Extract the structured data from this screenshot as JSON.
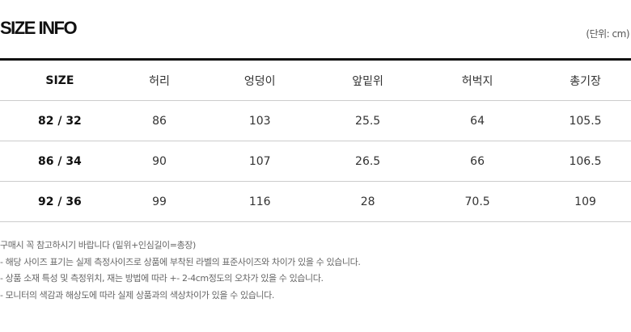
{
  "title": "SIZE INFO",
  "unit": "(단위: cm)",
  "table": {
    "headers": [
      "SIZE",
      "허리",
      "엉덩이",
      "앞밑위",
      "허벅지",
      "총기장"
    ],
    "rows": [
      [
        "82 / 32",
        "86",
        "103",
        "25.5",
        "64",
        "105.5"
      ],
      [
        "86 / 34",
        "90",
        "107",
        "26.5",
        "66",
        "106.5"
      ],
      [
        "92 / 36",
        "99",
        "116",
        "28",
        "70.5",
        "109"
      ]
    ]
  },
  "notes": [
    "구매시 꼭 참고하시기 바랍니다 (밑위+인심길이=총장)",
    "- 해당 사이즈 표기는 실제 측정사이즈로 상품에 부착된 라벨의 표준사이즈와 차이가 있을 수 있습니다.",
    "- 상품 소재 특성 및 측정위치, 재는 방법에 따라 +- 2-4cm정도의 오차가 있을 수 있습니다.",
    "- 모니터의 색감과 해상도에 따라 실제 상품과의 색상차이가 있을 수 있습니다."
  ]
}
